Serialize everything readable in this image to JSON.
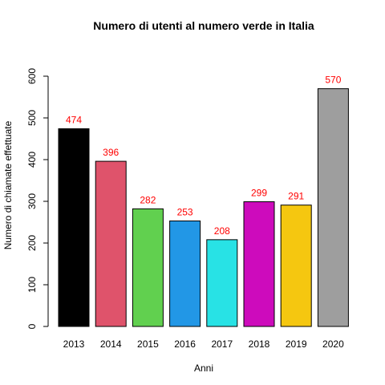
{
  "chart_data": {
    "type": "bar",
    "title": "Numero di utenti al numero verde in Italia",
    "xlabel": "Anni",
    "ylabel": "Numero di chiamate effettuate",
    "categories": [
      "2013",
      "2014",
      "2015",
      "2016",
      "2017",
      "2018",
      "2019",
      "2020"
    ],
    "values": [
      474,
      396,
      282,
      253,
      208,
      299,
      291,
      570
    ],
    "data_labels": [
      "474",
      "396",
      "282",
      "253",
      "208",
      "299",
      "291",
      "570"
    ],
    "colors": [
      "#000000",
      "#DF536B",
      "#61D04F",
      "#2297E6",
      "#28E2E5",
      "#CD0BBC",
      "#F5C710",
      "#9E9E9E"
    ],
    "label_color": "#FF0000",
    "ylim": [
      0,
      600
    ],
    "yticks": [
      "0",
      "100",
      "200",
      "300",
      "400",
      "500",
      "600"
    ],
    "grid": false,
    "legend": "none"
  }
}
